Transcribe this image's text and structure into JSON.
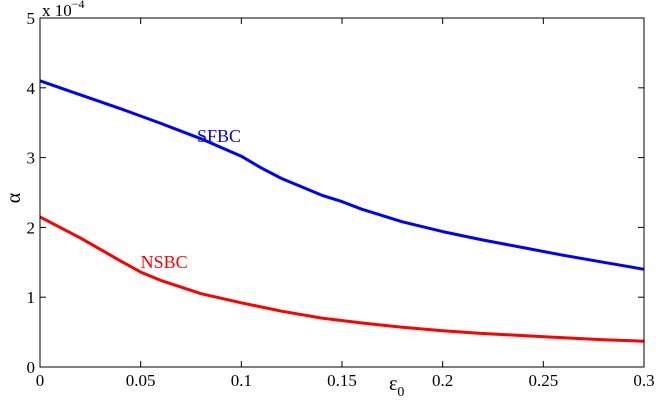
{
  "chart_data": {
    "type": "line",
    "title": "",
    "xlabel": "ε",
    "xlabel_subscript": "0",
    "ylabel": "α",
    "xlim": [
      0,
      0.3
    ],
    "ylim": [
      0,
      5
    ],
    "y_multiplier_label": "x 10",
    "y_multiplier_exponent": "−4",
    "x_ticks": [
      0,
      0.05,
      0.1,
      0.15,
      0.2,
      0.25,
      0.3
    ],
    "x_tick_labels": [
      "0",
      "0.05",
      "0.1",
      "0.15",
      "0.2",
      "0.25",
      "0.3"
    ],
    "y_ticks": [
      0,
      1,
      2,
      3,
      4,
      5
    ],
    "y_tick_labels": [
      "0",
      "1",
      "2",
      "3",
      "4",
      "5"
    ],
    "grid": false,
    "series": [
      {
        "name": "SFBC",
        "color": "#0000ff",
        "x": [
          0,
          0.02,
          0.04,
          0.06,
          0.08,
          0.1,
          0.11,
          0.12,
          0.14,
          0.15,
          0.16,
          0.18,
          0.2,
          0.22,
          0.24,
          0.26,
          0.28,
          0.3
        ],
        "y": [
          4.1,
          3.9,
          3.7,
          3.49,
          3.27,
          3.02,
          2.85,
          2.7,
          2.46,
          2.37,
          2.26,
          2.08,
          1.94,
          1.82,
          1.71,
          1.6,
          1.5,
          1.4
        ]
      },
      {
        "name": "NSBC",
        "color": "#ff0000",
        "x": [
          0,
          0.02,
          0.04,
          0.05,
          0.06,
          0.08,
          0.1,
          0.12,
          0.14,
          0.16,
          0.18,
          0.2,
          0.22,
          0.24,
          0.26,
          0.28,
          0.3
        ],
        "y": [
          2.15,
          1.85,
          1.52,
          1.36,
          1.24,
          1.05,
          0.92,
          0.8,
          0.7,
          0.63,
          0.57,
          0.52,
          0.48,
          0.45,
          0.42,
          0.39,
          0.37
        ]
      }
    ],
    "annotations": [
      {
        "text": "SFBC",
        "x": 0.078,
        "y": 3.22,
        "color": "#0000ff"
      },
      {
        "text": "NSBC",
        "x": 0.05,
        "y": 1.42,
        "color": "#ff0000"
      }
    ]
  }
}
